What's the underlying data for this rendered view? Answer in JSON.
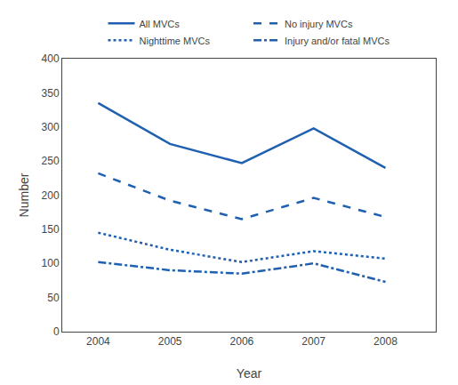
{
  "chart_data": {
    "type": "line",
    "x": [
      2004,
      2005,
      2006,
      2007,
      2008
    ],
    "series": [
      {
        "name": "All MVCs",
        "color": "#2060b0",
        "line_style": "solid",
        "values": [
          335,
          275,
          247,
          298,
          240
        ]
      },
      {
        "name": "No injury MVCs",
        "color": "#2060b0",
        "line_style": "dashed",
        "values": [
          232,
          192,
          165,
          196,
          168
        ]
      },
      {
        "name": "Nighttime MVCs",
        "color": "#2060b0",
        "line_style": "dotted",
        "values": [
          145,
          120,
          102,
          118,
          107
        ]
      },
      {
        "name": "Injury and/or fatal MVCs",
        "color": "#2060b0",
        "line_style": "dashdot",
        "values": [
          102,
          90,
          85,
          100,
          73
        ]
      }
    ],
    "xlabel": "Year",
    "ylabel": "Number",
    "xlim": [
      2003.5,
      2008.7
    ],
    "xticks": [
      2004,
      2005,
      2006,
      2007,
      2008
    ],
    "ylim": [
      0,
      400
    ],
    "yticks": [
      0,
      50,
      100,
      150,
      200,
      250,
      300,
      350,
      400
    ],
    "grid": false,
    "legend": "top"
  }
}
